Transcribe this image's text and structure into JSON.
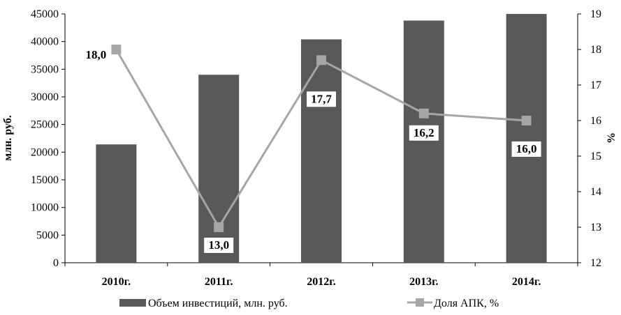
{
  "chart_data": {
    "type": "bar",
    "categories": [
      "2010г.",
      "2011г.",
      "2012г.",
      "2013г.",
      "2014г."
    ],
    "series": [
      {
        "name": "Объем инвестиций, млн. руб.",
        "type": "bar",
        "axis": "left",
        "color": "#595959",
        "values": [
          21400,
          34000,
          40400,
          43800,
          45000
        ]
      },
      {
        "name": "Доля АПК, %",
        "type": "line",
        "axis": "right",
        "color": "#a6a6a6",
        "values": [
          18.0,
          13.0,
          17.7,
          16.2,
          16.0
        ],
        "labels": [
          "18,0",
          "13,0",
          "17,7",
          "16,2",
          "16,0"
        ]
      }
    ],
    "ylabel": "млн. руб.",
    "y2label": "%",
    "ylim": [
      0,
      45000
    ],
    "y2lim": [
      12,
      19
    ],
    "yticks": [
      "0",
      "5000",
      "10000",
      "15000",
      "20000",
      "25000",
      "30000",
      "35000",
      "40000",
      "45000"
    ],
    "y2ticks": [
      "12",
      "13",
      "14",
      "15",
      "16",
      "17",
      "18",
      "19"
    ],
    "legend": "bottom",
    "grid": false
  }
}
